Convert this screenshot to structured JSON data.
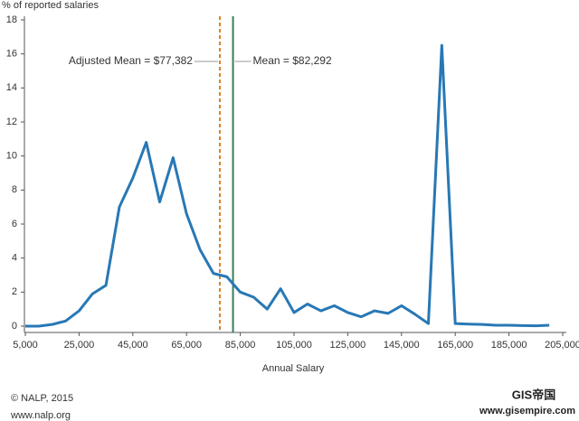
{
  "chart_data": {
    "type": "line",
    "ylabel": "% of reported salaries",
    "xlabel": "Annual Salary",
    "x": [
      5000,
      10000,
      15000,
      20000,
      25000,
      30000,
      35000,
      40000,
      45000,
      50000,
      55000,
      60000,
      65000,
      70000,
      75000,
      80000,
      85000,
      90000,
      95000,
      100000,
      105000,
      110000,
      115000,
      120000,
      125000,
      130000,
      135000,
      140000,
      145000,
      150000,
      155000,
      160000,
      165000,
      170000,
      175000,
      180000,
      185000,
      190000,
      195000,
      200000
    ],
    "series": [
      {
        "color": "#2878b5",
        "values": [
          0,
          0,
          0.1,
          0.3,
          0.9,
          1.9,
          2.4,
          7.0,
          8.7,
          10.8,
          7.3,
          9.9,
          6.6,
          4.5,
          3.1,
          2.9,
          2.0,
          1.7,
          1.0,
          2.2,
          0.8,
          1.3,
          0.9,
          1.2,
          0.8,
          0.55,
          0.9,
          0.75,
          1.2,
          0.7,
          0.15,
          16.5,
          0.15,
          0.12,
          0.1,
          0.05,
          0.05,
          0.03,
          0.02,
          0.05
        ]
      }
    ],
    "mean_lines": [
      {
        "label": "Adjusted Mean = $77,382",
        "value": 77382,
        "color": "#d9822b",
        "dashed": true
      },
      {
        "label": "Mean = $82,292",
        "value": 82292,
        "color": "#3a7d5a",
        "dashed": false
      }
    ],
    "xlim": [
      5000,
      205000
    ],
    "xticks": [
      {
        "value": 5000,
        "label": "5,000"
      },
      {
        "value": 25000,
        "label": "25,000"
      },
      {
        "value": 45000,
        "label": "45,000"
      },
      {
        "value": 65000,
        "label": "65,000"
      },
      {
        "value": 85000,
        "label": "85,000"
      },
      {
        "value": 105000,
        "label": "105,000"
      },
      {
        "value": 125000,
        "label": "125,000"
      },
      {
        "value": 145000,
        "label": "145,000"
      },
      {
        "value": 165000,
        "label": "165,000"
      },
      {
        "value": 185000,
        "label": "185,000"
      },
      {
        "value": 205000,
        "label": "205,000"
      }
    ],
    "ylim": [
      0,
      18
    ],
    "yticks": [
      0,
      2,
      4,
      6,
      8,
      10,
      12,
      14,
      16,
      18
    ],
    "grid": false
  },
  "footer": {
    "copyright": "© NALP, 2015",
    "website": "www.nalp.org"
  },
  "watermark": {
    "logo": "GIS帝国",
    "url": "www.gisempire.com"
  }
}
